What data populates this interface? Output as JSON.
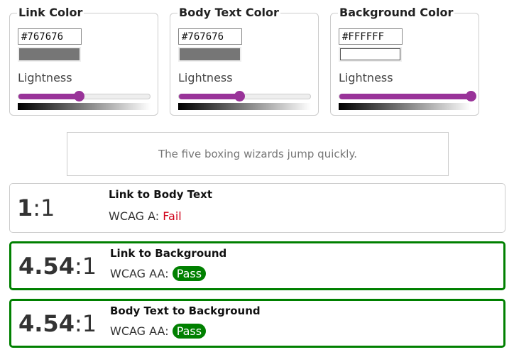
{
  "pickers": [
    {
      "legend": "Link Color",
      "hex": "#767676",
      "lightness_label": "Lightness",
      "lightness": 46
    },
    {
      "legend": "Body Text Color",
      "hex": "#767676",
      "lightness_label": "Lightness",
      "lightness": 46
    },
    {
      "legend": "Background Color",
      "hex": "#FFFFFF",
      "lightness_label": "Lightness",
      "lightness": 100
    }
  ],
  "sample_text": "The five boxing wizards jump quickly.",
  "results": [
    {
      "ratio": "1",
      "suffix": ":1",
      "title": "Link to Body Text",
      "level": "WCAG A:",
      "status": "Fail",
      "pass": false
    },
    {
      "ratio": "4.54",
      "suffix": ":1",
      "title": "Link to Background",
      "level": "WCAG AA:",
      "status": "Pass",
      "pass": true
    },
    {
      "ratio": "4.54",
      "suffix": ":1",
      "title": "Body Text to Background",
      "level": "WCAG AA:",
      "status": "Pass",
      "pass": true
    }
  ],
  "colors": {
    "accent": "#993399",
    "pass": "#008000",
    "fail": "#d0021b",
    "link": "#767676",
    "body_text": "#767676",
    "background": "#FFFFFF"
  }
}
